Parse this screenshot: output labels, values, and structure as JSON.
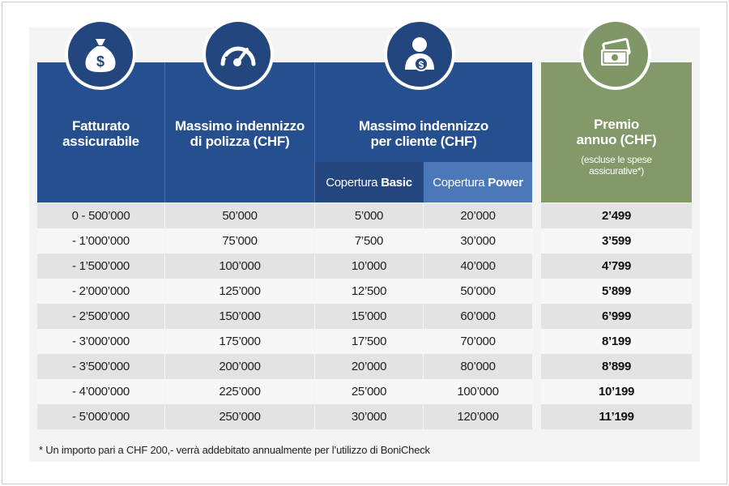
{
  "headers": {
    "fatturato": [
      "Fatturato",
      "assicurabile"
    ],
    "polizza": [
      "Massimo indennizzo",
      "di polizza (CHF)"
    ],
    "cliente": [
      "Massimo indennizzo",
      "per cliente (CHF)"
    ],
    "premio": [
      "Premio",
      "annuo (CHF)"
    ],
    "premio_note": [
      "(escluse le spese",
      "assicurative*)"
    ],
    "basic_prefix": "Copertura",
    "basic_strong": "Basic",
    "power_prefix": "Copertura",
    "power_strong": "Power"
  },
  "icons": [
    "money-bag-icon",
    "speedometer-icon",
    "person-dollar-icon",
    "banknotes-icon"
  ],
  "colors": {
    "header_blue": "#264f8f",
    "subheader_dark": "#23467e",
    "subheader_light": "#4b78b8",
    "header_green": "#83996a",
    "row_even": "#e3e3e3",
    "row_odd": "#f7f7f7"
  },
  "rows": [
    {
      "fatturato": "0 - 500’000",
      "polizza": "50’000",
      "basic": "5’000",
      "power": "20’000",
      "premio": "2’499"
    },
    {
      "fatturato": "- 1’000’000",
      "polizza": "75’000",
      "basic": "7’500",
      "power": "30’000",
      "premio": "3’599"
    },
    {
      "fatturato": "- 1’500’000",
      "polizza": "100’000",
      "basic": "10’000",
      "power": "40’000",
      "premio": "4’799"
    },
    {
      "fatturato": "- 2’000’000",
      "polizza": "125’000",
      "basic": "12’500",
      "power": "50’000",
      "premio": "5’899"
    },
    {
      "fatturato": "- 2’500’000",
      "polizza": "150’000",
      "basic": "15’000",
      "power": "60’000",
      "premio": "6’999"
    },
    {
      "fatturato": "- 3’000’000",
      "polizza": "175’000",
      "basic": "17’500",
      "power": "70’000",
      "premio": "8’199"
    },
    {
      "fatturato": "- 3’500’000",
      "polizza": "200’000",
      "basic": "20’000",
      "power": "80’000",
      "premio": "8’899"
    },
    {
      "fatturato": "- 4’000’000",
      "polizza": "225’000",
      "basic": "25’000",
      "power": "100’000",
      "premio": "10’199"
    },
    {
      "fatturato": "- 5’000’000",
      "polizza": "250’000",
      "basic": "30’000",
      "power": "120’000",
      "premio": "11’199"
    }
  ],
  "footnote": "* Un importo pari a CHF 200,- verrà addebitato annualmente per l’utilizzo di BoniCheck"
}
